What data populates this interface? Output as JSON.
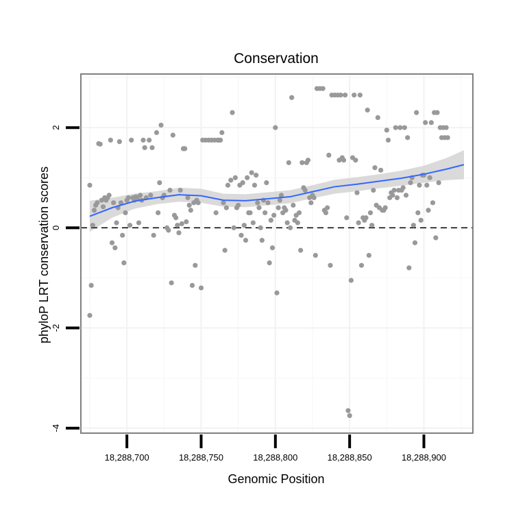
{
  "chart_data": {
    "type": "scatter",
    "title": "Conservation",
    "xlabel": "Genomic Position",
    "ylabel": "phyloP LRT conservation scores",
    "xlim": [
      18288669,
      18288933
    ],
    "ylim": [
      -4.1,
      3.07
    ],
    "x_ticks": [
      18288700,
      18288750,
      18288800,
      18288850,
      18288900
    ],
    "x_tick_labels": [
      "18,288,700",
      "18,288,750",
      "18,288,800",
      "18,288,850",
      "18,288,900"
    ],
    "y_ticks": [
      -4,
      -2,
      0,
      2
    ],
    "y_tick_labels": [
      "-4",
      "-2",
      "0",
      "2"
    ],
    "reference_line": {
      "y": 0,
      "style": "dashed"
    },
    "smooth_color": "#3366ff",
    "point_color": "#999999",
    "ribbon_color": "#d3d3d3",
    "points": [
      [
        18288675,
        0.85
      ],
      [
        18288675,
        -1.75
      ],
      [
        18288676,
        -1.15
      ],
      [
        18288677,
        0.05
      ],
      [
        18288678,
        0.35
      ],
      [
        18288679,
        0.45
      ],
      [
        18288680,
        0.5
      ],
      [
        18288681,
        1.68
      ],
      [
        18288682,
        1.67
      ],
      [
        18288683,
        0.55
      ],
      [
        18288684,
        0.42
      ],
      [
        18288685,
        0.6
      ],
      [
        18288686,
        0.55
      ],
      [
        18288687,
        0.6
      ],
      [
        18288688,
        0.65
      ],
      [
        18288689,
        1.75
      ],
      [
        18288690,
        -0.3
      ],
      [
        18288691,
        0.5
      ],
      [
        18288692,
        -0.4
      ],
      [
        18288693,
        0.1
      ],
      [
        18288694,
        0.4
      ],
      [
        18288695,
        1.72
      ],
      [
        18288696,
        0.5
      ],
      [
        18288697,
        -0.15
      ],
      [
        18288698,
        -0.7
      ],
      [
        18288699,
        0.3
      ],
      [
        18288700,
        0.55
      ],
      [
        18288701,
        0.6
      ],
      [
        18288702,
        0.05
      ],
      [
        18288703,
        1.75
      ],
      [
        18288704,
        0.6
      ],
      [
        18288705,
        0.55
      ],
      [
        18288706,
        0.62
      ],
      [
        18288707,
        0.58
      ],
      [
        18288708,
        0.1
      ],
      [
        18288709,
        0.65
      ],
      [
        18288710,
        0.55
      ],
      [
        18288711,
        1.75
      ],
      [
        18288712,
        1.6
      ],
      [
        18288713,
        0.6
      ],
      [
        18288715,
        1.75
      ],
      [
        18288716,
        0.65
      ],
      [
        18288717,
        1.6
      ],
      [
        18288718,
        -0.15
      ],
      [
        18288720,
        1.9
      ],
      [
        18288721,
        0.3
      ],
      [
        18288722,
        0.9
      ],
      [
        18288723,
        2.05
      ],
      [
        18288724,
        0.6
      ],
      [
        18288725,
        0.65
      ],
      [
        18288727,
        0.0
      ],
      [
        18288728,
        -0.05
      ],
      [
        18288729,
        0.75
      ],
      [
        18288730,
        -1.1
      ],
      [
        18288731,
        1.85
      ],
      [
        18288732,
        0.25
      ],
      [
        18288733,
        0.2
      ],
      [
        18288734,
        0.05
      ],
      [
        18288735,
        -0.1
      ],
      [
        18288736,
        0.75
      ],
      [
        18288737,
        0.08
      ],
      [
        18288738,
        1.58
      ],
      [
        18288739,
        1.58
      ],
      [
        18288740,
        0.12
      ],
      [
        18288741,
        0.6
      ],
      [
        18288742,
        0.45
      ],
      [
        18288743,
        0.35
      ],
      [
        18288744,
        -1.15
      ],
      [
        18288745,
        0.5
      ],
      [
        18288746,
        -0.75
      ],
      [
        18288747,
        0.55
      ],
      [
        18288748,
        0.5
      ],
      [
        18288750,
        -1.2
      ],
      [
        18288751,
        1.75
      ],
      [
        18288753,
        1.75
      ],
      [
        18288755,
        1.75
      ],
      [
        18288757,
        1.75
      ],
      [
        18288759,
        1.75
      ],
      [
        18288760,
        0.3
      ],
      [
        18288761,
        1.75
      ],
      [
        18288762,
        1.75
      ],
      [
        18288763,
        1.75
      ],
      [
        18288764,
        1.9
      ],
      [
        18288765,
        0.5
      ],
      [
        18288766,
        -0.45
      ],
      [
        18288767,
        0.4
      ],
      [
        18288768,
        0.85
      ],
      [
        18288770,
        0.95
      ],
      [
        18288771,
        2.3
      ],
      [
        18288772,
        0.0
      ],
      [
        18288773,
        1.0
      ],
      [
        18288774,
        0.4
      ],
      [
        18288775,
        0.45
      ],
      [
        18288776,
        0.85
      ],
      [
        18288777,
        -0.15
      ],
      [
        18288778,
        0.9
      ],
      [
        18288779,
        0.05
      ],
      [
        18288780,
        -0.25
      ],
      [
        18288781,
        1.0
      ],
      [
        18288782,
        0.3
      ],
      [
        18288783,
        0.3
      ],
      [
        18288784,
        1.1
      ],
      [
        18288785,
        0.1
      ],
      [
        18288786,
        0.85
      ],
      [
        18288787,
        1.05
      ],
      [
        18288788,
        0.5
      ],
      [
        18288789,
        0.4
      ],
      [
        18288790,
        0.0
      ],
      [
        18288791,
        -0.25
      ],
      [
        18288792,
        0.55
      ],
      [
        18288793,
        0.3
      ],
      [
        18288794,
        0.9
      ],
      [
        18288795,
        0.5
      ],
      [
        18288796,
        -0.7
      ],
      [
        18288797,
        0.15
      ],
      [
        18288798,
        -0.4
      ],
      [
        18288799,
        0.25
      ],
      [
        18288800,
        2.0
      ],
      [
        18288801,
        -1.3
      ],
      [
        18288802,
        0.4
      ],
      [
        18288803,
        0.55
      ],
      [
        18288804,
        0.65
      ],
      [
        18288805,
        0.3
      ],
      [
        18288806,
        0.4
      ],
      [
        18288807,
        0.35
      ],
      [
        18288808,
        0.1
      ],
      [
        18288809,
        1.3
      ],
      [
        18288810,
        0.0
      ],
      [
        18288811,
        2.6
      ],
      [
        18288812,
        0.45
      ],
      [
        18288813,
        0.15
      ],
      [
        18288814,
        0.25
      ],
      [
        18288815,
        0.1
      ],
      [
        18288816,
        0.3
      ],
      [
        18288817,
        -0.45
      ],
      [
        18288818,
        1.3
      ],
      [
        18288819,
        0.8
      ],
      [
        18288820,
        0.75
      ],
      [
        18288821,
        1.3
      ],
      [
        18288822,
        1.35
      ],
      [
        18288823,
        0.6
      ],
      [
        18288824,
        0.5
      ],
      [
        18288825,
        0.65
      ],
      [
        18288826,
        0.6
      ],
      [
        18288827,
        -0.55
      ],
      [
        18288828,
        2.78
      ],
      [
        18288830,
        2.78
      ],
      [
        18288832,
        2.78
      ],
      [
        18288833,
        0.35
      ],
      [
        18288834,
        0.3
      ],
      [
        18288835,
        0.4
      ],
      [
        18288836,
        1.45
      ],
      [
        18288837,
        -0.75
      ],
      [
        18288838,
        2.65
      ],
      [
        18288840,
        2.65
      ],
      [
        18288842,
        2.65
      ],
      [
        18288843,
        1.35
      ],
      [
        18288844,
        2.65
      ],
      [
        18288845,
        1.4
      ],
      [
        18288846,
        1.35
      ],
      [
        18288847,
        2.65
      ],
      [
        18288848,
        0.2
      ],
      [
        18288849,
        -3.65
      ],
      [
        18288850,
        -3.75
      ],
      [
        18288851,
        -1.05
      ],
      [
        18288852,
        1.4
      ],
      [
        18288853,
        2.65
      ],
      [
        18288854,
        1.35
      ],
      [
        18288855,
        0.7
      ],
      [
        18288856,
        0.1
      ],
      [
        18288857,
        2.65
      ],
      [
        18288858,
        -0.75
      ],
      [
        18288859,
        0.2
      ],
      [
        18288860,
        0.15
      ],
      [
        18288861,
        0.2
      ],
      [
        18288862,
        2.35
      ],
      [
        18288863,
        -0.55
      ],
      [
        18288864,
        0.3
      ],
      [
        18288865,
        0.05
      ],
      [
        18288866,
        0.75
      ],
      [
        18288867,
        1.2
      ],
      [
        18288868,
        0.45
      ],
      [
        18288869,
        2.2
      ],
      [
        18288870,
        0.4
      ],
      [
        18288871,
        1.15
      ],
      [
        18288872,
        0.35
      ],
      [
        18288873,
        0.35
      ],
      [
        18288874,
        0.4
      ],
      [
        18288875,
        1.95
      ],
      [
        18288876,
        1.75
      ],
      [
        18288877,
        0.6
      ],
      [
        18288878,
        0.7
      ],
      [
        18288879,
        0.65
      ],
      [
        18288880,
        0.75
      ],
      [
        18288881,
        2.0
      ],
      [
        18288882,
        0.6
      ],
      [
        18288883,
        0.75
      ],
      [
        18288884,
        2.0
      ],
      [
        18288885,
        0.75
      ],
      [
        18288886,
        0.8
      ],
      [
        18288887,
        2.0
      ],
      [
        18288888,
        0.65
      ],
      [
        18288889,
        1.8
      ],
      [
        18288890,
        -0.8
      ],
      [
        18288891,
        0.9
      ],
      [
        18288892,
        1.0
      ],
      [
        18288893,
        0.05
      ],
      [
        18288894,
        -0.3
      ],
      [
        18288895,
        2.3
      ],
      [
        18288896,
        0.3
      ],
      [
        18288897,
        0.85
      ],
      [
        18288898,
        0.15
      ],
      [
        18288899,
        1.05
      ],
      [
        18288900,
        1.05
      ],
      [
        18288901,
        2.1
      ],
      [
        18288902,
        0.85
      ],
      [
        18288903,
        0.35
      ],
      [
        18288904,
        1.0
      ],
      [
        18288905,
        2.1
      ],
      [
        18288906,
        0.5
      ],
      [
        18288907,
        2.3
      ],
      [
        18288908,
        -0.2
      ],
      [
        18288909,
        2.3
      ],
      [
        18288910,
        0.9
      ],
      [
        18288911,
        2.0
      ],
      [
        18288912,
        1.8
      ],
      [
        18288913,
        2.0
      ],
      [
        18288914,
        1.8
      ],
      [
        18288915,
        2.0
      ],
      [
        18288916,
        1.8
      ]
    ],
    "smooth": {
      "x": [
        18288675,
        18288690,
        18288705,
        18288720,
        18288735,
        18288750,
        18288765,
        18288780,
        18288795,
        18288810,
        18288825,
        18288840,
        18288855,
        18288870,
        18288885,
        18288900,
        18288915,
        18288927
      ],
      "y": [
        0.23,
        0.4,
        0.53,
        0.6,
        0.66,
        0.64,
        0.55,
        0.54,
        0.58,
        0.62,
        0.72,
        0.82,
        0.87,
        0.93,
        0.99,
        1.07,
        1.17,
        1.26
      ],
      "lower": [
        -0.08,
        0.2,
        0.38,
        0.47,
        0.52,
        0.5,
        0.42,
        0.41,
        0.45,
        0.49,
        0.59,
        0.68,
        0.73,
        0.79,
        0.84,
        0.9,
        0.95,
        0.97
      ],
      "upper": [
        0.54,
        0.6,
        0.68,
        0.73,
        0.8,
        0.78,
        0.68,
        0.67,
        0.71,
        0.75,
        0.85,
        0.96,
        1.01,
        1.07,
        1.14,
        1.24,
        1.39,
        1.55
      ]
    }
  }
}
